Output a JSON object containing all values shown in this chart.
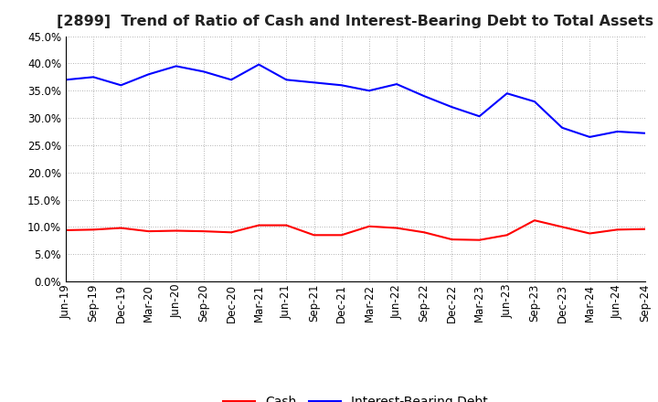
{
  "title": "[2899]  Trend of Ratio of Cash and Interest-Bearing Debt to Total Assets",
  "x_labels": [
    "Jun-19",
    "Sep-19",
    "Dec-19",
    "Mar-20",
    "Jun-20",
    "Sep-20",
    "Dec-20",
    "Mar-21",
    "Jun-21",
    "Sep-21",
    "Dec-21",
    "Mar-22",
    "Jun-22",
    "Sep-22",
    "Dec-22",
    "Mar-23",
    "Jun-23",
    "Sep-23",
    "Dec-23",
    "Mar-24",
    "Jun-24",
    "Sep-24"
  ],
  "cash": [
    9.4,
    9.5,
    9.8,
    9.2,
    9.3,
    9.2,
    9.0,
    10.3,
    10.3,
    8.5,
    8.5,
    10.1,
    9.8,
    9.0,
    7.7,
    7.6,
    8.5,
    11.2,
    10.0,
    8.8,
    9.5,
    9.6
  ],
  "ibd": [
    37.0,
    37.5,
    36.0,
    38.0,
    39.5,
    38.5,
    37.0,
    39.8,
    37.0,
    36.5,
    36.0,
    35.0,
    36.2,
    34.0,
    32.0,
    30.3,
    34.5,
    33.0,
    28.2,
    26.5,
    27.5,
    27.2
  ],
  "cash_color": "#ff0000",
  "ibd_color": "#0000ff",
  "ylim": [
    0.0,
    45.0
  ],
  "yticks": [
    0.0,
    5.0,
    10.0,
    15.0,
    20.0,
    25.0,
    30.0,
    35.0,
    40.0,
    45.0
  ],
  "bg_color": "#ffffff",
  "grid_color": "#999999",
  "legend_cash": "Cash",
  "legend_ibd": "Interest-Bearing Debt",
  "title_fontsize": 11.5,
  "tick_fontsize": 8.5,
  "legend_fontsize": 10
}
